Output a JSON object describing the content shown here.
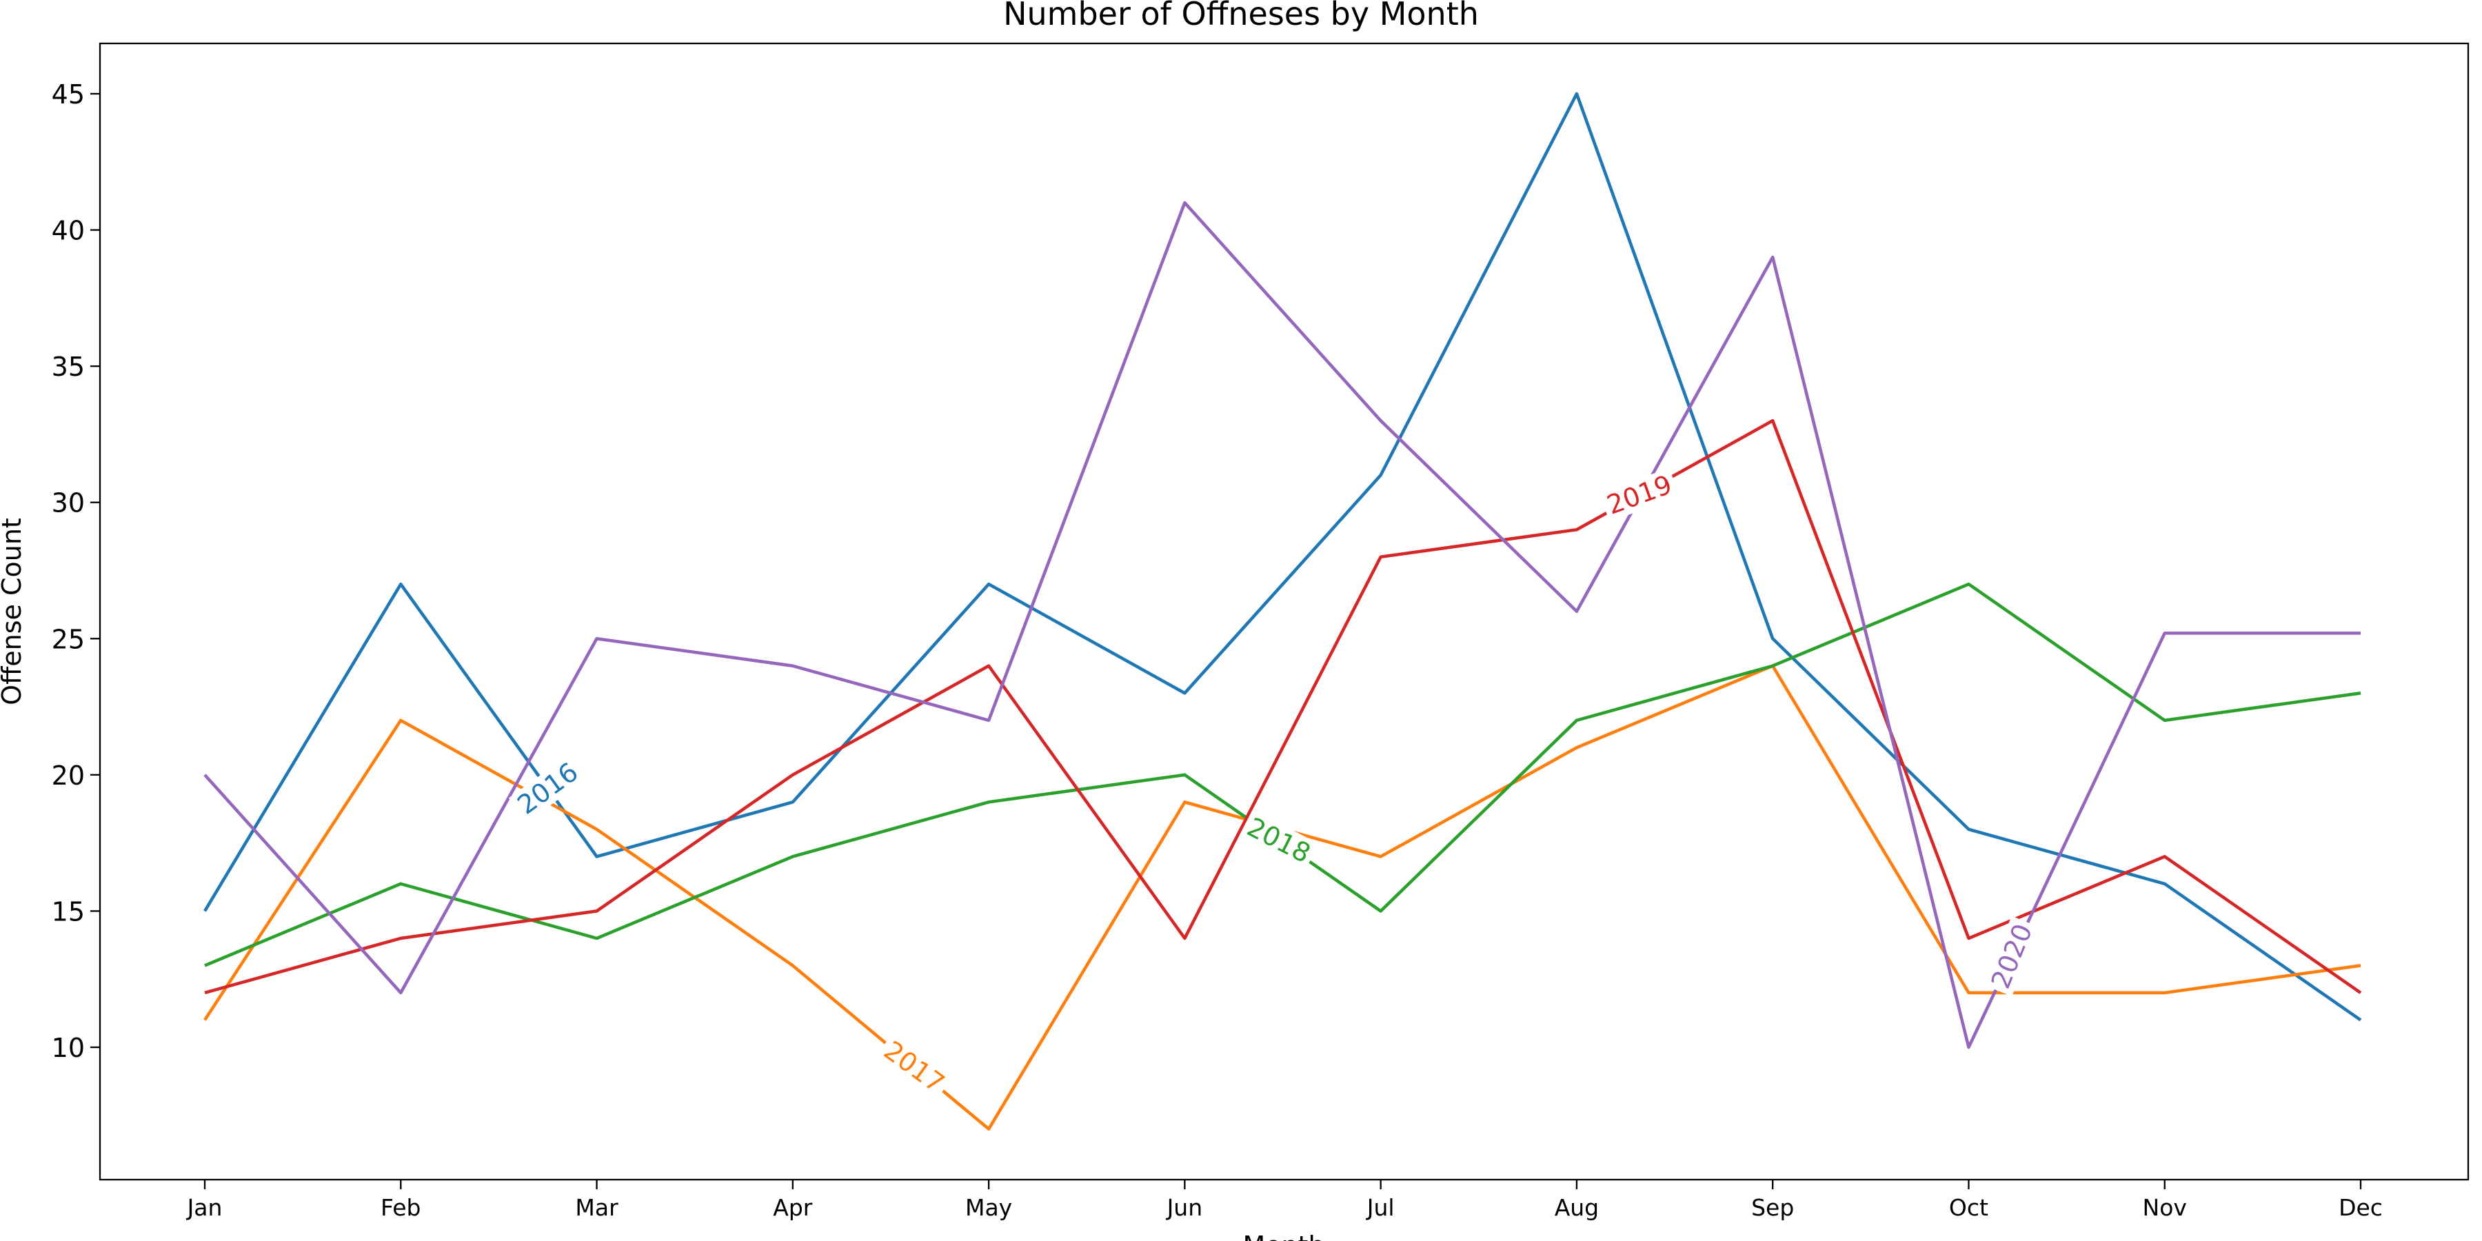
{
  "chart_data": {
    "type": "line",
    "title": "Number of Offneses by Month",
    "xlabel": "Month",
    "ylabel": "Offense Count",
    "categories": [
      "Jan",
      "Feb",
      "Mar",
      "Apr",
      "May",
      "Jun",
      "Jul",
      "Aug",
      "Sep",
      "Oct",
      "Nov",
      "Dec"
    ],
    "yticks": [
      10,
      15,
      20,
      25,
      30,
      35,
      40,
      45
    ],
    "ylim": [
      5,
      47
    ],
    "grid": false,
    "legend": "inline labels on lines",
    "series": [
      {
        "name": "2016",
        "color": "#1f77b4",
        "values": [
          15,
          27,
          17,
          19,
          27,
          23,
          31,
          45,
          25,
          18,
          16,
          11
        ],
        "label_segment": [
          1,
          2
        ],
        "label_t": 0.75,
        "label_rotation": -36
      },
      {
        "name": "2017",
        "color": "#ff7f0e",
        "values": [
          11,
          22,
          18,
          13,
          7,
          19,
          17,
          21,
          24,
          12,
          12,
          13
        ],
        "label_segment": [
          3,
          4
        ],
        "label_t": 0.62,
        "label_rotation": 36
      },
      {
        "name": "2018",
        "color": "#2ca02c",
        "values": [
          13,
          16,
          14,
          17,
          19,
          20,
          15,
          22,
          24,
          27,
          22,
          23
        ],
        "label_segment": [
          5,
          6
        ],
        "label_t": 0.48,
        "label_rotation": 27
      },
      {
        "name": "2019",
        "color": "#d62728",
        "values": [
          12,
          14,
          15,
          20,
          24,
          14,
          28,
          29,
          33,
          14,
          17,
          12
        ],
        "label_segment": [
          7,
          8
        ],
        "label_t": 0.32,
        "label_rotation": -20
      },
      {
        "name": "2020",
        "color": "#9467bd",
        "values": [
          20,
          12,
          25,
          24,
          22,
          41,
          33,
          26,
          39,
          10,
          25.2,
          25.2
        ],
        "label_segment": [
          9,
          10
        ],
        "label_t": 0.22,
        "label_rotation": -68
      }
    ]
  }
}
